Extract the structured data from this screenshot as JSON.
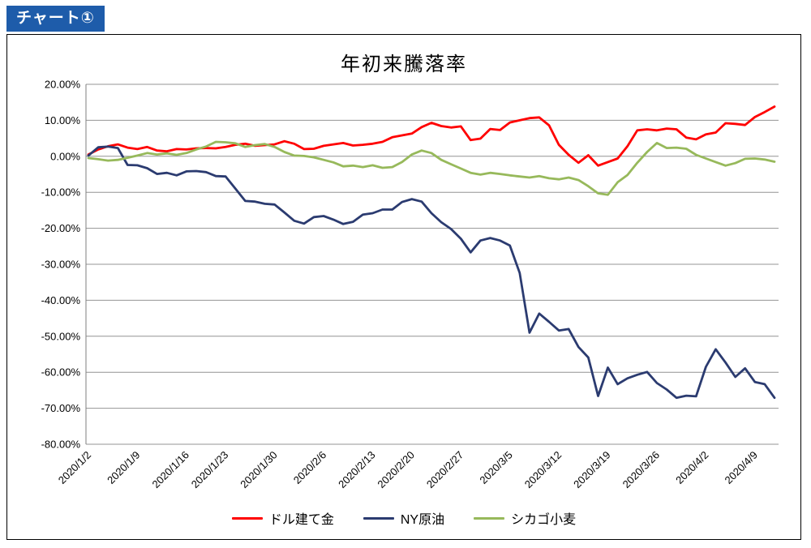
{
  "page": {
    "badge_label": "チャート①",
    "badge_bg": "#1e5caa",
    "background": "#ffffff",
    "border_color": "#000000"
  },
  "chart_data": {
    "type": "line",
    "title": "年初来騰落率",
    "ylim": [
      -80,
      20
    ],
    "y_step": 10,
    "grid": true,
    "grid_color": "#949494",
    "axis_color": "#7f7f7f",
    "legend_position": "bottom",
    "y_tick_labels": [
      "20.00%",
      "10.00%",
      "0.00%",
      "-10.00%",
      "-20.00%",
      "-30.00%",
      "-40.00%",
      "-50.00%",
      "-60.00%",
      "-70.00%",
      "-80.00%"
    ],
    "x_tick_labels": [
      "2020/1/2",
      "2020/1/9",
      "2020/1/16",
      "2020/1/23",
      "2020/1/30",
      "2020/2/6",
      "2020/2/13",
      "2020/2/20",
      "2020/2/27",
      "2020/3/5",
      "2020/3/12",
      "2020/3/19",
      "2020/3/26",
      "2020/4/2",
      "2020/4/9"
    ],
    "x": [
      "2020/1/2",
      "2020/1/3",
      "2020/1/6",
      "2020/1/7",
      "2020/1/8",
      "2020/1/9",
      "2020/1/10",
      "2020/1/13",
      "2020/1/14",
      "2020/1/15",
      "2020/1/16",
      "2020/1/17",
      "2020/1/21",
      "2020/1/22",
      "2020/1/23",
      "2020/1/24",
      "2020/1/27",
      "2020/1/28",
      "2020/1/29",
      "2020/1/30",
      "2020/1/31",
      "2020/2/3",
      "2020/2/4",
      "2020/2/5",
      "2020/2/6",
      "2020/2/7",
      "2020/2/10",
      "2020/2/11",
      "2020/2/12",
      "2020/2/13",
      "2020/2/14",
      "2020/2/18",
      "2020/2/19",
      "2020/2/20",
      "2020/2/21",
      "2020/2/24",
      "2020/2/25",
      "2020/2/26",
      "2020/2/27",
      "2020/2/28",
      "2020/3/2",
      "2020/3/3",
      "2020/3/4",
      "2020/3/5",
      "2020/3/6",
      "2020/3/9",
      "2020/3/10",
      "2020/3/11",
      "2020/3/12",
      "2020/3/13",
      "2020/3/16",
      "2020/3/17",
      "2020/3/18",
      "2020/3/19",
      "2020/3/20",
      "2020/3/23",
      "2020/3/24",
      "2020/3/25",
      "2020/3/26",
      "2020/3/27",
      "2020/3/30",
      "2020/3/31",
      "2020/4/1",
      "2020/4/2",
      "2020/4/3",
      "2020/4/6",
      "2020/4/7",
      "2020/4/8",
      "2020/4/9",
      "2020/4/13",
      "2020/4/14"
    ],
    "series": [
      {
        "name": "ドル建て金",
        "color": "#ff0000",
        "values": [
          0.5,
          1.9,
          2.8,
          3.3,
          2.4,
          2.0,
          2.6,
          1.6,
          1.4,
          2.0,
          1.9,
          2.2,
          2.3,
          2.2,
          2.6,
          3.2,
          3.5,
          2.9,
          3.1,
          3.3,
          4.2,
          3.5,
          2.0,
          2.1,
          2.9,
          3.3,
          3.7,
          3.0,
          3.2,
          3.5,
          4.0,
          5.3,
          5.8,
          6.3,
          8.1,
          9.3,
          8.4,
          8.0,
          8.3,
          4.5,
          4.9,
          7.6,
          7.3,
          9.4,
          10.0,
          10.6,
          10.8,
          8.6,
          3.2,
          0.4,
          -1.8,
          0.3,
          -2.6,
          -1.6,
          -0.6,
          2.8,
          7.2,
          7.5,
          7.2,
          7.7,
          7.5,
          5.2,
          4.7,
          6.1,
          6.6,
          9.2,
          9.0,
          8.7,
          10.9,
          12.3,
          13.8
        ]
      },
      {
        "name": "NY原油",
        "color": "#2b3b70",
        "values": [
          0.2,
          2.5,
          2.7,
          2.3,
          -2.4,
          -2.5,
          -3.3,
          -4.9,
          -4.6,
          -5.3,
          -4.2,
          -4.1,
          -4.4,
          -5.5,
          -5.6,
          -9.0,
          -12.4,
          -12.6,
          -13.2,
          -13.4,
          -15.6,
          -17.9,
          -18.7,
          -16.9,
          -16.6,
          -17.6,
          -18.8,
          -18.2,
          -16.2,
          -15.8,
          -14.8,
          -14.8,
          -12.7,
          -11.9,
          -12.6,
          -15.8,
          -18.3,
          -20.2,
          -22.9,
          -26.7,
          -23.4,
          -22.7,
          -23.4,
          -24.8,
          -32.4,
          -49.0,
          -43.7,
          -46.0,
          -48.4,
          -48.0,
          -53.0,
          -55.9,
          -66.6,
          -58.7,
          -63.3,
          -61.7,
          -60.7,
          -59.9,
          -63.0,
          -64.8,
          -67.1,
          -66.5,
          -66.7,
          -58.5,
          -53.6,
          -57.3,
          -61.3,
          -58.9,
          -62.7,
          -63.3,
          -67.1
        ]
      },
      {
        "name": "シカゴ小麦",
        "color": "#97b95b",
        "values": [
          -0.5,
          -0.8,
          -1.2,
          -1.0,
          -0.4,
          0.2,
          0.9,
          0.5,
          0.8,
          0.4,
          0.9,
          1.9,
          2.7,
          4.0,
          3.9,
          3.6,
          2.6,
          3.1,
          3.4,
          2.6,
          1.2,
          0.2,
          0.1,
          -0.3,
          -1.0,
          -1.7,
          -2.8,
          -2.6,
          -3.0,
          -2.5,
          -3.2,
          -3.0,
          -1.6,
          0.5,
          1.6,
          0.9,
          -1.0,
          -2.2,
          -3.4,
          -4.6,
          -5.1,
          -4.6,
          -4.9,
          -5.3,
          -5.6,
          -5.9,
          -5.5,
          -6.1,
          -6.4,
          -5.9,
          -6.6,
          -8.3,
          -10.3,
          -10.7,
          -7.2,
          -5.2,
          -1.8,
          1.2,
          3.7,
          2.3,
          2.4,
          2.1,
          0.4,
          -0.6,
          -1.6,
          -2.6,
          -1.9,
          -0.7,
          -0.6,
          -0.9,
          -1.5
        ]
      }
    ]
  }
}
